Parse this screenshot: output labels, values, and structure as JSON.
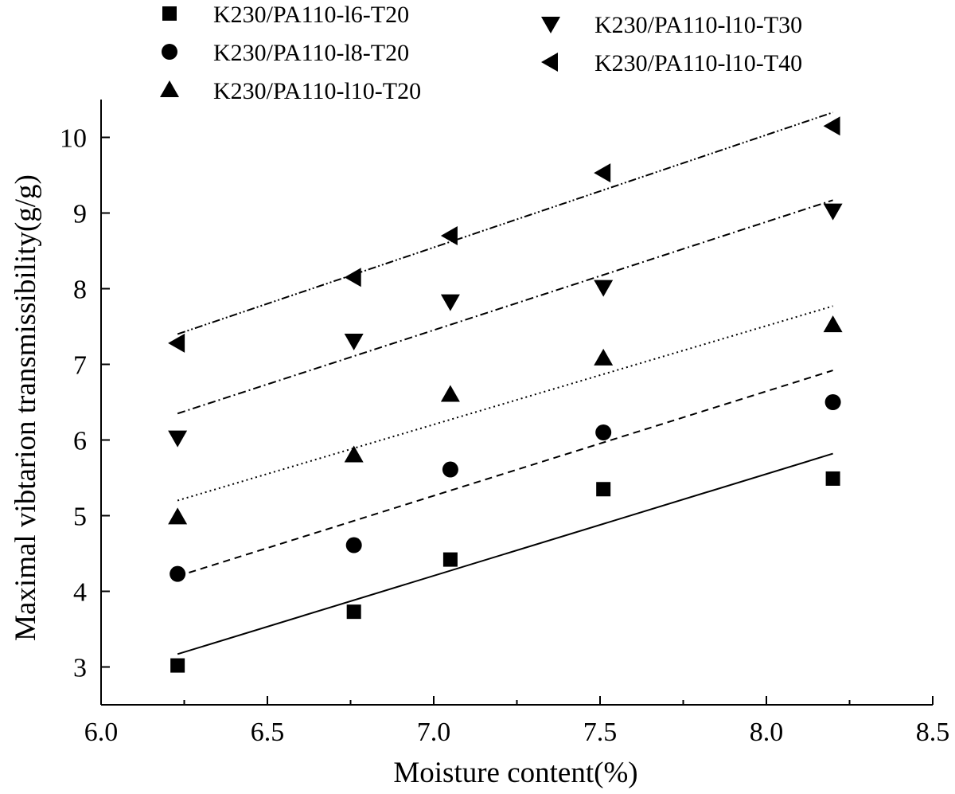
{
  "chart_data": {
    "type": "scatter",
    "xlabel": "Moisture content(%)",
    "ylabel": "Maximal vibtarion transmissibility(g/g)",
    "xlim": [
      6.0,
      8.5
    ],
    "ylim": [
      2.5,
      10.5
    ],
    "x_ticks": [
      "6.0",
      "6.5",
      "7.0",
      "7.5",
      "8.0",
      "8.5"
    ],
    "y_ticks": [
      "3",
      "4",
      "5",
      "6",
      "7",
      "8",
      "9",
      "10"
    ],
    "x": [
      6.23,
      6.76,
      7.05,
      7.51,
      8.2
    ],
    "grid": false,
    "legend_placement": "top",
    "series": [
      {
        "name": "K230/PA110-l6-T20",
        "marker": "square",
        "line_style": "solid",
        "values": [
          3.02,
          3.73,
          4.42,
          5.35,
          5.49
        ],
        "fit": [
          3.17,
          5.82
        ]
      },
      {
        "name": "K230/PA110-l8-T20",
        "marker": "circle",
        "line_style": "dashed",
        "values": [
          4.23,
          4.61,
          5.61,
          6.1,
          6.5
        ],
        "fit": [
          4.2,
          6.92
        ]
      },
      {
        "name": "K230/PA110-l10-T20",
        "marker": "triangle-up",
        "line_style": "dotted",
        "values": [
          4.98,
          5.8,
          6.6,
          7.08,
          7.52
        ],
        "fit": [
          5.2,
          7.77
        ]
      },
      {
        "name": "K230/PA110-l10-T30",
        "marker": "triangle-down",
        "line_style": "dashdot",
        "values": [
          6.03,
          7.31,
          7.83,
          8.02,
          9.03
        ],
        "fit": [
          6.35,
          9.17
        ]
      },
      {
        "name": "K230/PA110-l10-T40",
        "marker": "triangle-left",
        "line_style": "dashdotdot",
        "values": [
          7.28,
          8.15,
          8.7,
          9.53,
          10.15
        ],
        "fit": [
          7.4,
          10.33
        ]
      }
    ]
  }
}
